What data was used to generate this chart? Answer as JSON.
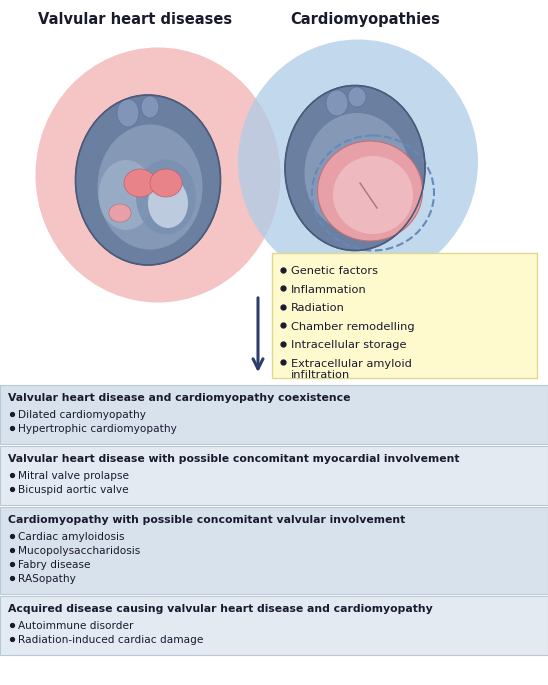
{
  "title_left": "Valvular heart diseases",
  "title_right": "Cardiomyopathies",
  "title_fontsize": 10.5,
  "title_fontweight": "bold",
  "ellipse_left_color": "#f2b0b0",
  "ellipse_right_color": "#aecde8",
  "ellipse_alpha": 0.75,
  "yellow_box_color": "#fefacd",
  "yellow_box_border": "#e0d890",
  "yellow_box_items": [
    "Genetic factors",
    "Inflammation",
    "Radiation",
    "Chamber remodelling",
    "Intracellular storage",
    "Extracellular amyloid\ninfiltration"
  ],
  "arrow_color": "#2c3e6e",
  "section_bg_odd": "#d8e2ed",
  "section_bg_even": "#e4eaf2",
  "section_border_color": "#b8c8d8",
  "sections": [
    {
      "title": "Valvular heart disease and cardiomyopathy coexistence",
      "items": [
        "Dilated cardiomyopathy",
        "Hypertrophic cardiomyopathy"
      ]
    },
    {
      "title": "Valvular heart disease with possible concomitant myocardial involvement",
      "items": [
        "Mitral valve prolapse",
        "Bicuspid aortic valve"
      ]
    },
    {
      "title": "Cardiomyopathy with possible concomitant valvular involvement",
      "items": [
        "Cardiac amyloidosis",
        "Mucopolysaccharidosis",
        "Fabry disease",
        "RASopathy"
      ]
    },
    {
      "title": "Acquired disease causing valvular heart disease and cardiomyopathy",
      "items": [
        "Autoimmune disorder",
        "Radiation-induced cardiac damage"
      ]
    }
  ],
  "section_title_fontsize": 7.8,
  "section_item_fontsize": 7.6,
  "text_dark": "#1a1a2e",
  "fig_width": 5.48,
  "fig_height": 6.85,
  "fig_dpi": 100
}
